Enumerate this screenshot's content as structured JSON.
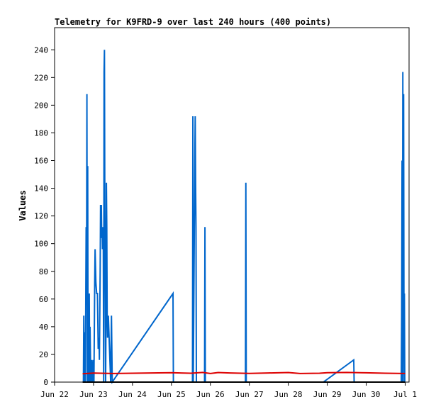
{
  "chart_data": {
    "type": "line",
    "title": "Telemetry for K9FRD-9 over last 240 hours (400 points)",
    "xlabel": "",
    "ylabel": "Values",
    "xlim": [
      22.0,
      31.1
    ],
    "ylim": [
      0,
      256
    ],
    "grid": false,
    "x_tick_labels": [
      {
        "label": "Jun 22",
        "x": 22.0
      },
      {
        "label": "Jun 23",
        "x": 23.0
      },
      {
        "label": "Jun 24",
        "x": 24.0
      },
      {
        "label": "Jun 25",
        "x": 25.0
      },
      {
        "label": "Jun 26",
        "x": 26.0
      },
      {
        "label": "Jun 27",
        "x": 27.0
      },
      {
        "label": "Jun 28",
        "x": 28.0
      },
      {
        "label": "Jun 29",
        "x": 29.0
      },
      {
        "label": "Jun 30",
        "x": 30.0
      },
      {
        "label": "Jul 1",
        "x": 31.0
      }
    ],
    "y_ticks": [
      0,
      20,
      40,
      60,
      80,
      100,
      120,
      140,
      160,
      180,
      200,
      220,
      240
    ],
    "series": [
      {
        "color": "#0066cc",
        "points": [
          [
            22.74,
            0
          ],
          [
            22.75,
            48
          ],
          [
            22.76,
            0
          ],
          [
            22.78,
            36
          ],
          [
            22.79,
            0
          ],
          [
            22.81,
            112
          ],
          [
            22.82,
            56
          ],
          [
            22.83,
            208
          ],
          [
            22.84,
            0
          ],
          [
            22.85,
            156
          ],
          [
            22.86,
            0
          ],
          [
            22.87,
            32
          ],
          [
            22.88,
            0
          ],
          [
            22.89,
            64
          ],
          [
            22.9,
            0
          ],
          [
            22.91,
            40
          ],
          [
            22.93,
            0
          ],
          [
            22.95,
            16
          ],
          [
            22.97,
            0
          ],
          [
            22.99,
            16
          ],
          [
            23.01,
            0
          ],
          [
            23.03,
            72
          ],
          [
            23.04,
            96
          ],
          [
            23.06,
            72
          ],
          [
            23.08,
            64
          ],
          [
            23.1,
            64
          ],
          [
            23.12,
            24
          ],
          [
            23.14,
            32
          ],
          [
            23.15,
            16
          ],
          [
            23.17,
            80
          ],
          [
            23.18,
            128
          ],
          [
            23.19,
            104
          ],
          [
            23.2,
            128
          ],
          [
            23.21,
            104
          ],
          [
            23.22,
            112
          ],
          [
            23.23,
            96
          ],
          [
            23.24,
            112
          ],
          [
            23.25,
            104
          ],
          [
            23.26,
            0
          ],
          [
            23.27,
            224
          ],
          [
            23.28,
            240
          ],
          [
            23.29,
            120
          ],
          [
            23.3,
            64
          ],
          [
            23.31,
            0
          ],
          [
            23.32,
            48
          ],
          [
            23.33,
            144
          ],
          [
            23.34,
            112
          ],
          [
            23.35,
            48
          ],
          [
            23.36,
            32
          ],
          [
            23.38,
            48
          ],
          [
            23.4,
            32
          ],
          [
            23.42,
            16
          ],
          [
            23.44,
            0
          ],
          [
            23.46,
            48
          ],
          [
            23.48,
            0
          ],
          [
            25.04,
            64
          ],
          [
            25.05,
            0
          ],
          [
            25.54,
            0
          ],
          [
            25.55,
            192
          ],
          [
            25.56,
            0
          ],
          [
            25.6,
            160
          ],
          [
            25.61,
            192
          ],
          [
            25.62,
            144
          ],
          [
            25.63,
            112
          ],
          [
            25.64,
            0
          ],
          [
            25.85,
            0
          ],
          [
            25.86,
            112
          ],
          [
            25.87,
            0
          ],
          [
            26.9,
            0
          ],
          [
            26.91,
            144
          ],
          [
            26.92,
            0
          ],
          [
            28.9,
            0
          ],
          [
            29.68,
            16
          ],
          [
            29.69,
            0
          ],
          [
            30.9,
            0
          ],
          [
            30.91,
            48
          ],
          [
            30.92,
            160
          ],
          [
            30.93,
            0
          ],
          [
            30.94,
            224
          ],
          [
            30.95,
            0
          ],
          [
            30.96,
            208
          ],
          [
            30.97,
            32
          ],
          [
            30.98,
            64
          ],
          [
            30.99,
            0
          ]
        ]
      },
      {
        "color": "#dd0000",
        "points": [
          [
            22.72,
            6
          ],
          [
            23.0,
            6.5
          ],
          [
            23.5,
            6.2
          ],
          [
            24.0,
            6.4
          ],
          [
            24.5,
            6.6
          ],
          [
            25.0,
            6.8
          ],
          [
            25.5,
            6.4
          ],
          [
            25.8,
            7.0
          ],
          [
            26.0,
            6.2
          ],
          [
            26.2,
            6.9
          ],
          [
            26.5,
            6.6
          ],
          [
            27.0,
            6.3
          ],
          [
            27.5,
            6.6
          ],
          [
            28.0,
            6.9
          ],
          [
            28.3,
            6.2
          ],
          [
            28.8,
            6.4
          ],
          [
            29.0,
            6.8
          ],
          [
            29.5,
            7.0
          ],
          [
            30.0,
            6.7
          ],
          [
            30.5,
            6.4
          ],
          [
            31.0,
            6.2
          ]
        ]
      },
      {
        "color": "#000000",
        "points": [
          [
            22.72,
            0
          ],
          [
            31.0,
            0
          ]
        ]
      }
    ]
  }
}
